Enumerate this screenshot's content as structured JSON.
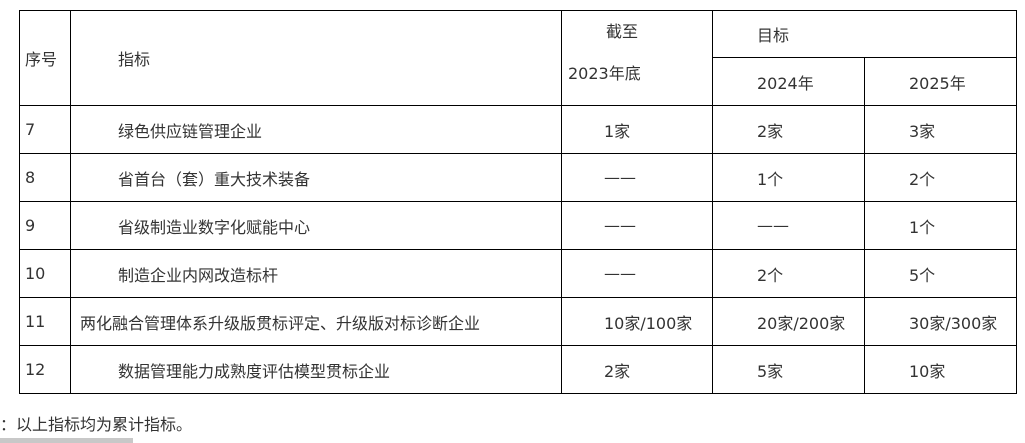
{
  "table": {
    "headers": {
      "seq": "序号",
      "indicator": "指标",
      "current_line1": "截至",
      "current_line2": "2023年底",
      "target": "目标",
      "y2024": "2024年",
      "y2025": "2025年"
    },
    "rows": [
      {
        "seq": "7",
        "indicator": "绿色供应链管理企业",
        "current": "1家",
        "y2024": "2家",
        "y2025": "3家"
      },
      {
        "seq": "8",
        "indicator": "省首台（套）重大技术装备",
        "current": "——",
        "y2024": "1个",
        "y2025": "2个"
      },
      {
        "seq": "9",
        "indicator": "省级制造业数字化赋能中心",
        "current": "——",
        "y2024": "——",
        "y2025": "1个"
      },
      {
        "seq": "10",
        "indicator": "制造企业内网改造标杆",
        "current": "——",
        "y2024": "2个",
        "y2025": "5个"
      },
      {
        "seq": "11",
        "indicator": "两化融合管理体系升级版贯标评定、升级版对标诊断企业",
        "current": "10家/100家",
        "y2024": "20家/200家",
        "y2025": "30家/300家"
      },
      {
        "seq": "12",
        "indicator": "数据管理能力成熟度评估模型贯标企业",
        "current": "2家",
        "y2024": "5家",
        "y2025": "10家"
      }
    ]
  },
  "footnote": "：以上指标均为累计指标。"
}
